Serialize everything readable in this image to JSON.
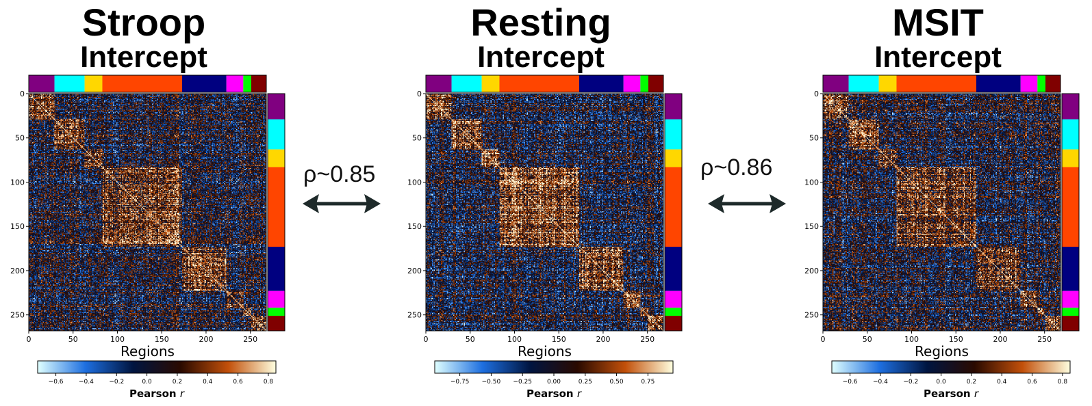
{
  "chart_data": [
    {
      "type": "heatmap",
      "title": "Stroop",
      "subtitle": "Intercept",
      "xlabel": "Regions",
      "ticks": [
        0,
        50,
        100,
        150,
        200,
        250
      ],
      "range": [
        0,
        268
      ],
      "colorbar": {
        "label": "Pearson",
        "label_var": "r",
        "ticks": [
          "−0.6",
          "−0.4",
          "−0.2",
          "0.0",
          "0.2",
          "0.4",
          "0.6",
          "0.8"
        ],
        "tick_values": [
          -0.6,
          -0.4,
          -0.2,
          0.0,
          0.2,
          0.4,
          0.6,
          0.8
        ],
        "range": [
          -0.72,
          0.85
        ]
      }
    },
    {
      "type": "heatmap",
      "title": "Resting",
      "subtitle": "Intercept",
      "xlabel": "Regions",
      "ticks": [
        0,
        50,
        100,
        150,
        200,
        250
      ],
      "range": [
        0,
        268
      ],
      "colorbar": {
        "label": "Pearson",
        "label_var": "r",
        "ticks": [
          "−0.75",
          "−0.50",
          "−0.25",
          "0.00",
          "0.25",
          "0.50",
          "0.75"
        ],
        "tick_values": [
          -0.75,
          -0.5,
          -0.25,
          0.0,
          0.25,
          0.5,
          0.75
        ],
        "range": [
          -0.95,
          0.95
        ]
      }
    },
    {
      "type": "heatmap",
      "title": "MSIT",
      "subtitle": "Intercept",
      "xlabel": "Regions",
      "ticks": [
        0,
        50,
        100,
        150,
        200,
        250
      ],
      "range": [
        0,
        268
      ],
      "colorbar": {
        "label": "Pearson",
        "label_var": "r",
        "ticks": [
          "−0.6",
          "−0.4",
          "−0.2",
          "0.0",
          "0.2",
          "0.4",
          "0.6",
          "0.8"
        ],
        "tick_values": [
          -0.6,
          -0.4,
          -0.2,
          0.0,
          0.2,
          0.4,
          0.6,
          0.8
        ],
        "range": [
          -0.72,
          0.85
        ]
      }
    }
  ],
  "networks": [
    {
      "start": 0,
      "end": 29,
      "color": "#800080"
    },
    {
      "start": 29,
      "end": 63,
      "color": "#00FFFF"
    },
    {
      "start": 63,
      "end": 83,
      "color": "#FFD700"
    },
    {
      "start": 83,
      "end": 173,
      "color": "#FF4500"
    },
    {
      "start": 173,
      "end": 223,
      "color": "#000080"
    },
    {
      "start": 223,
      "end": 242,
      "color": "#FF00FF"
    },
    {
      "start": 242,
      "end": 251,
      "color": "#00FF00"
    },
    {
      "start": 251,
      "end": 268,
      "color": "#800000"
    }
  ],
  "comparisons": [
    {
      "label": "ρ~0.85"
    },
    {
      "label": "ρ~0.86"
    }
  ],
  "colors": {
    "cmap": [
      "#E0FFFF",
      "#1E6FE0",
      "#001540",
      "#2A0A00",
      "#C2500A",
      "#FFFFE0"
    ],
    "arrow": "#1e2a2a"
  }
}
